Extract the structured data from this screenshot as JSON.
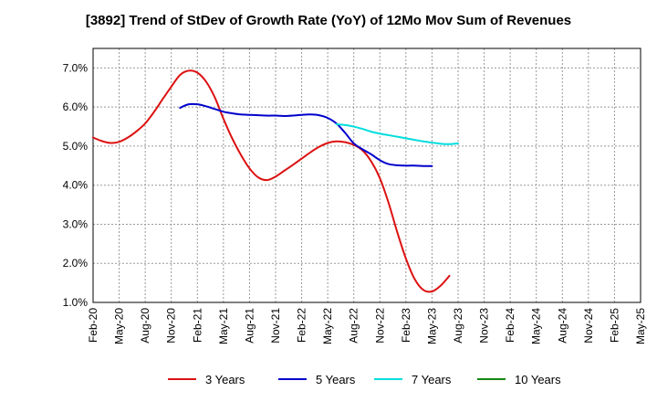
{
  "chart_data": {
    "type": "line",
    "title": "[3892]  Trend of StDev of Growth Rate (YoY) of 12Mo Mov Sum of Revenues",
    "xlabel": "",
    "ylabel": "",
    "ylim": [
      1.0,
      7.5
    ],
    "y_ticks": [
      1.0,
      2.0,
      3.0,
      4.0,
      5.0,
      6.0,
      7.0
    ],
    "y_tick_labels": [
      "1.0%",
      "2.0%",
      "3.0%",
      "4.0%",
      "5.0%",
      "6.0%",
      "7.0%"
    ],
    "x_ticks": [
      "Feb-20",
      "May-20",
      "Aug-20",
      "Nov-20",
      "Feb-21",
      "May-21",
      "Aug-21",
      "Nov-21",
      "Feb-22",
      "May-22",
      "Aug-22",
      "Nov-22",
      "Feb-23",
      "May-23",
      "Aug-23",
      "Nov-23",
      "Feb-24",
      "May-24",
      "Aug-24",
      "Nov-24",
      "Feb-25",
      "May-25"
    ],
    "grid": true,
    "legend_position": "bottom",
    "series": [
      {
        "name": "3 Years",
        "color": "#dd1111",
        "start_index": 0,
        "values": [
          5.22,
          5.13,
          5.08,
          5.11,
          5.22,
          5.38,
          5.58,
          5.87,
          6.2,
          6.52,
          6.82,
          6.93,
          6.88,
          6.65,
          6.25,
          5.7,
          5.2,
          4.78,
          4.43,
          4.2,
          4.13,
          4.22,
          4.37,
          4.52,
          4.68,
          4.84,
          4.98,
          5.08,
          5.12,
          5.1,
          5.03,
          4.89,
          4.61,
          4.18,
          3.55,
          2.8,
          2.12,
          1.6,
          1.32,
          1.28,
          1.43,
          1.68
        ]
      },
      {
        "name": "5 Years",
        "color": "#0000cc",
        "start_index": 10,
        "values": [
          5.98,
          6.07,
          6.07,
          6.02,
          5.95,
          5.88,
          5.84,
          5.81,
          5.8,
          5.79,
          5.78,
          5.78,
          5.77,
          5.78,
          5.8,
          5.81,
          5.79,
          5.72,
          5.58,
          5.34,
          5.07,
          4.92,
          4.79,
          4.64,
          4.54,
          4.51,
          4.5,
          4.5,
          4.49,
          4.49
        ]
      },
      {
        "name": "7 Years",
        "color": "#00dddd",
        "start_index": 28,
        "values": [
          5.56,
          5.54,
          5.5,
          5.44,
          5.37,
          5.32,
          5.28,
          5.24,
          5.2,
          5.16,
          5.12,
          5.09,
          5.06,
          5.05,
          5.07
        ]
      },
      {
        "name": "10 Years",
        "color": "#118811",
        "start_index": 0,
        "values": []
      }
    ]
  }
}
